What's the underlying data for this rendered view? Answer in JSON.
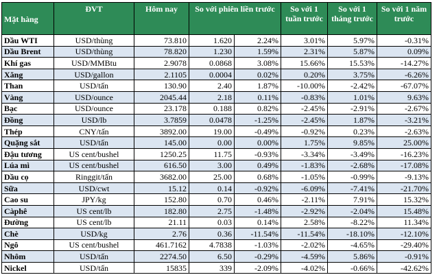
{
  "table": {
    "header": [
      "Mặt hàng",
      "ĐVT",
      "Hôm nay",
      "So với phiên liền trước",
      "So với 1 tuần trước",
      "So với 1 tháng trước",
      "So với 1 năm trước"
    ],
    "rows": [
      [
        "Dầu WTI",
        "USD/thùng",
        "73.810",
        "1.620",
        "2.24%",
        "3.01%",
        "5.97%",
        "-0.31%"
      ],
      [
        "Dầu Brent",
        "USD/thùng",
        "78.820",
        "1.230",
        "1.59%",
        "2.31%",
        "5.87%",
        "0.09%"
      ],
      [
        "Khí gas",
        "USD/MMBtu",
        "2.9078",
        "0.0868",
        "3.08%",
        "15.66%",
        "15.53%",
        "-14.27%"
      ],
      [
        "Xăng",
        "USD/gallon",
        "2.1105",
        "0.0004",
        "0.02%",
        "0.20%",
        "3.75%",
        "-6.26%"
      ],
      [
        "Than",
        "USD/tấn",
        "130.90",
        "2.40",
        "1.87%",
        "-10.00%",
        "-2.42%",
        "-67.07%"
      ],
      [
        "Vàng",
        "USD/ounce",
        "2045.44",
        "2.18",
        "0.11%",
        "-0.83%",
        "1.01%",
        "9.63%"
      ],
      [
        "Bạc",
        "USD/ounce",
        "23.178",
        "0.188",
        "0.82%",
        "-2.45%",
        "-2.91%",
        "-2.67%"
      ],
      [
        "Đồng",
        "USD/lb",
        "3.7859",
        "0.0478",
        "-1.25%",
        "-2.45%",
        "1.87%",
        "-3.21%"
      ],
      [
        "Thép",
        "CNY/tấn",
        "3892.00",
        "19.00",
        "-0.49%",
        "-0.92%",
        "0.23%",
        "-2.63%"
      ],
      [
        "Quặng sắt",
        "USD/tấn",
        "145.00",
        "0.00",
        "0.00%",
        "1.75%",
        "9.85%",
        "25.00%"
      ],
      [
        "Đậu tương",
        "US cent/bushel",
        "1250.25",
        "11.75",
        "-0.93%",
        "-3.34%",
        "-3.49%",
        "-16.23%"
      ],
      [
        "Lúa mì",
        "US cent/bushel",
        "616.50",
        "3.00",
        "0.49%",
        "-1.83%",
        "-2.68%",
        "-17.08%"
      ],
      [
        "Dầu cọ",
        "Ringgit/tấn",
        "3682.00",
        "25.00",
        "0.68%",
        "-1.05%",
        "-0.99%",
        "-9.13%"
      ],
      [
        "Sữa",
        "USD/cwt",
        "15.12",
        "0.14",
        "-0.92%",
        "-6.09%",
        "-7.41%",
        "-21.70%"
      ],
      [
        "Cao su",
        "JPY/kg",
        "152.80",
        "0.70",
        "0.46%",
        "-2.11%",
        "7.91%",
        "15.32%"
      ],
      [
        "Càphê",
        "US cent/lb",
        "182.80",
        "2.75",
        "-1.48%",
        "-2.92%",
        "-2.04%",
        "15.48%"
      ],
      [
        "Đường",
        "US cent/lb",
        "21.11",
        "0.03",
        "0.14%",
        "2.58%",
        "-8.22%",
        "11.34%"
      ],
      [
        "Chè",
        "USD/kg",
        "2.76",
        "0.36",
        "-11.54%",
        "-11.54%",
        "-18.10%",
        "-12.10%"
      ],
      [
        "Ngô",
        "US cent/bushel",
        "461.7162",
        "4.7838",
        "-1.03%",
        "-2.02%",
        "-4.65%",
        "-29.40%"
      ],
      [
        "Nhôm",
        "USD/tấn",
        "2274.50",
        "6.50",
        "-0.29%",
        "-4.59%",
        "5.86%",
        "-0.91%"
      ],
      [
        "Nickel",
        "USD/tấn",
        "15835",
        "339",
        "-2.09%",
        "-4.02%",
        "-0.66%",
        "-42.62%"
      ]
    ]
  }
}
